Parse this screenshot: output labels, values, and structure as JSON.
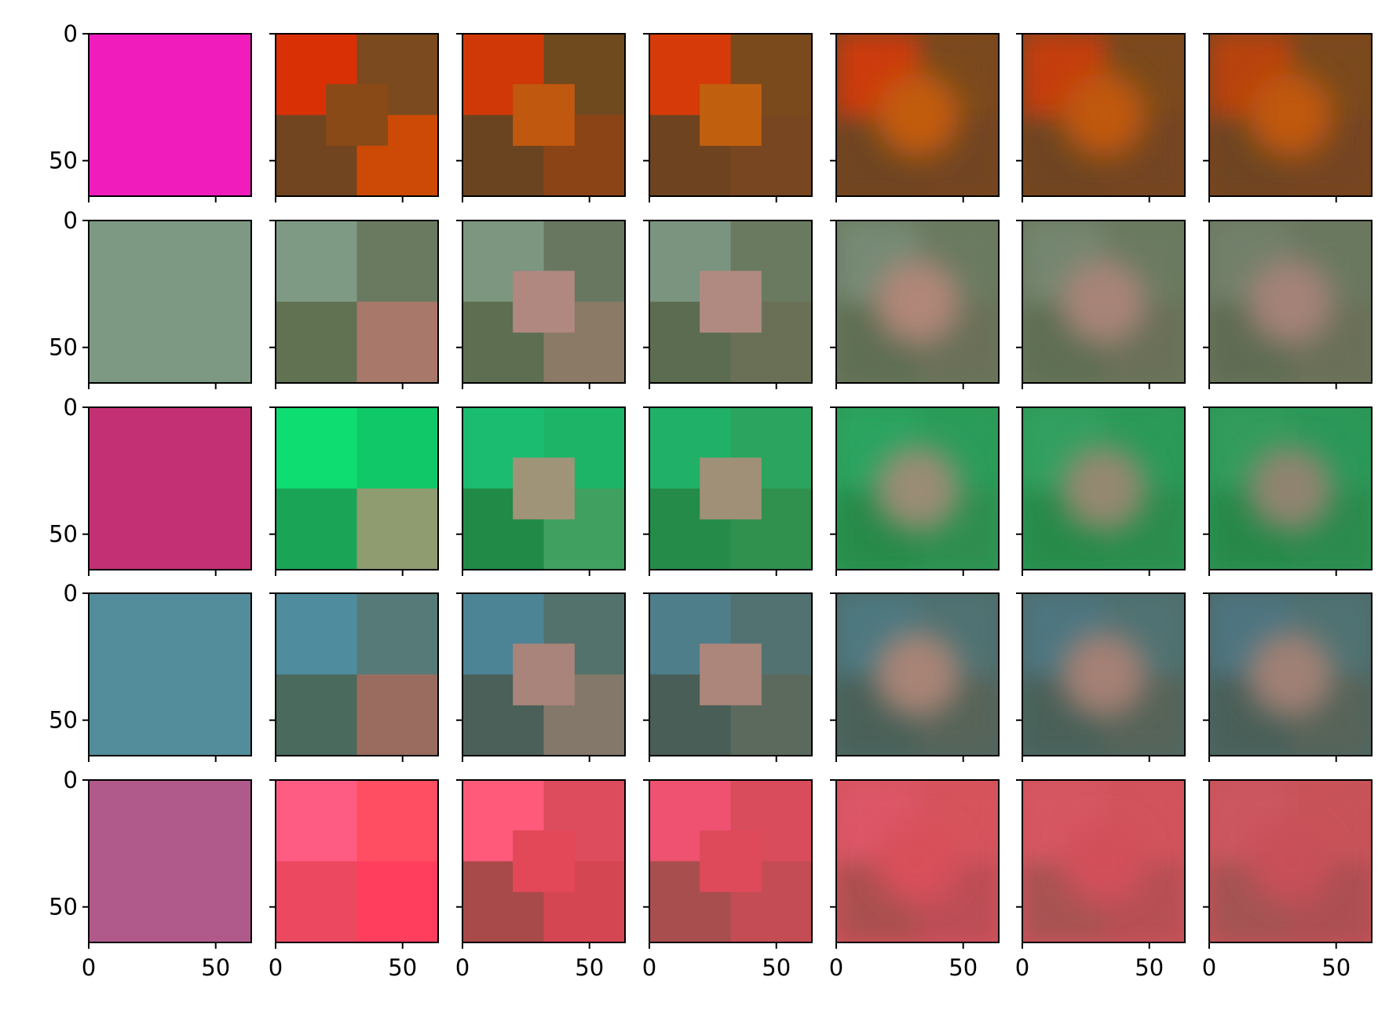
{
  "chart_data": {
    "type": "heatmap",
    "layout": "image grid, 5 rows x 7 columns",
    "x_ticks": [
      0,
      50
    ],
    "y_ticks": [
      0,
      50
    ],
    "xlim": [
      0,
      64
    ],
    "ylim": [
      64,
      0
    ],
    "grid": false,
    "legend": "none",
    "rows": [
      {
        "panels": [
          {
            "base": "#f01cbc",
            "tl": "#f01cbc",
            "tr": "#f01cbc",
            "bl": "#f01cbc",
            "br": "#f01cbc",
            "center": "#f01cbc",
            "blur": 0
          },
          {
            "base": "#7e4418",
            "tl": "#da3006",
            "tr": "#7b4a1e",
            "bl": "#704520",
            "br": "#cc4a06",
            "center": "#8a4a18",
            "blur": 0
          },
          {
            "base": "#8a4a1a",
            "tl": "#d03808",
            "tr": "#6e4a1e",
            "bl": "#6a4420",
            "br": "#8a4416",
            "center": "#c05810",
            "blur": 0
          },
          {
            "base": "#7e461c",
            "tl": "#d63a08",
            "tr": "#7a4a1c",
            "bl": "#6e4420",
            "br": "#784620",
            "center": "#c0600e",
            "blur": 0
          },
          {
            "base": "#7a461c",
            "tl": "#cc3a0a",
            "tr": "#7a4a1c",
            "bl": "#6e4420",
            "br": "#724420",
            "center": "#c25c10",
            "blur": 1
          },
          {
            "base": "#7c461c",
            "tl": "#c43e10",
            "tr": "#7a4a1c",
            "bl": "#6e4420",
            "br": "#734420",
            "center": "#c0580e",
            "blur": 1
          },
          {
            "base": "#7c461c",
            "tl": "#b8420e",
            "tr": "#7a4a1c",
            "bl": "#6e4420",
            "br": "#744420",
            "center": "#c0580e",
            "blur": 1
          }
        ]
      },
      {
        "panels": [
          {
            "base": "#7d9883",
            "tl": "#7d9883",
            "tr": "#7d9883",
            "bl": "#7d9883",
            "br": "#7d9883",
            "center": "#7d9883",
            "blur": 0
          },
          {
            "base": "#6a7a5e",
            "tl": "#7e9a84",
            "tr": "#6a7a60",
            "bl": "#607252",
            "br": "#a8786a",
            "center": "#6a7a5e",
            "blur": 0
          },
          {
            "base": "#6a7a5c",
            "tl": "#7c9680",
            "tr": "#687860",
            "bl": "#5e6e50",
            "br": "#8a7a66",
            "center": "#b08880",
            "blur": 0
          },
          {
            "base": "#68785a",
            "tl": "#7a9480",
            "tr": "#6a7a60",
            "bl": "#5c6c50",
            "br": "#6a7056",
            "center": "#b08a80",
            "blur": 0
          },
          {
            "base": "#6a785c",
            "tl": "#768a74",
            "tr": "#6a7a60",
            "bl": "#5e6e52",
            "br": "#6a7058",
            "center": "#b08678",
            "blur": 1
          },
          {
            "base": "#6a785c",
            "tl": "#748670",
            "tr": "#6a7a60",
            "bl": "#5e6e52",
            "br": "#6a7058",
            "center": "#a88478",
            "blur": 1
          },
          {
            "base": "#6c765c",
            "tl": "#72806a",
            "tr": "#6a7860",
            "bl": "#5e6c52",
            "br": "#6a7058",
            "center": "#a48278",
            "blur": 1
          }
        ]
      },
      {
        "panels": [
          {
            "base": "#c43074",
            "tl": "#c43074",
            "tr": "#c43074",
            "bl": "#c43074",
            "br": "#c43074",
            "center": "#c43074",
            "blur": 0
          },
          {
            "base": "#14b862",
            "tl": "#0ede72",
            "tr": "#10c868",
            "bl": "#1aa456",
            "br": "#8e9c70",
            "center": "#14b862",
            "blur": 0
          },
          {
            "base": "#20a85a",
            "tl": "#1cbc70",
            "tr": "#1eb468",
            "bl": "#208a46",
            "br": "#40a060",
            "center": "#a09478",
            "blur": 0
          },
          {
            "base": "#2aa058",
            "tl": "#20b068",
            "tr": "#2aa45e",
            "bl": "#248c48",
            "br": "#30904e",
            "center": "#a09078",
            "blur": 0
          },
          {
            "base": "#2c9a56",
            "tl": "#2ca460",
            "tr": "#2c9c5a",
            "bl": "#268a4a",
            "br": "#2e8e50",
            "center": "#9a8c74",
            "blur": 1
          },
          {
            "base": "#2c9856",
            "tl": "#30a060",
            "tr": "#2c9a58",
            "bl": "#268a4a",
            "br": "#2c8c4e",
            "center": "#948870",
            "blur": 1
          },
          {
            "base": "#2c9656",
            "tl": "#309c5c",
            "tr": "#2c9858",
            "bl": "#268848",
            "br": "#2c8a4e",
            "center": "#908470",
            "blur": 1
          }
        ]
      },
      {
        "panels": [
          {
            "base": "#538d9b",
            "tl": "#538d9b",
            "tr": "#538d9b",
            "bl": "#538d9b",
            "br": "#538d9b",
            "center": "#538d9b",
            "blur": 0
          },
          {
            "base": "#4e6a62",
            "tl": "#4e8c9e",
            "tr": "#567a78",
            "bl": "#4a6a5e",
            "br": "#9a6c60",
            "center": "#4e6a62",
            "blur": 0
          },
          {
            "base": "#507068",
            "tl": "#4c8496",
            "tr": "#54726c",
            "bl": "#4a6058",
            "br": "#84786a",
            "center": "#a8847a",
            "blur": 0
          },
          {
            "base": "#4e6c66",
            "tl": "#4e7e8a",
            "tr": "#527272",
            "bl": "#485e56",
            "br": "#5c6a5e",
            "center": "#ac867a",
            "blur": 0
          },
          {
            "base": "#4e6a66",
            "tl": "#4e7880",
            "tr": "#507272",
            "bl": "#486058",
            "br": "#566458",
            "center": "#a88476",
            "blur": 1
          },
          {
            "base": "#4e6a66",
            "tl": "#4e7680",
            "tr": "#507272",
            "bl": "#486058",
            "br": "#566458",
            "center": "#a48074",
            "blur": 1
          },
          {
            "base": "#4e6866",
            "tl": "#4e7480",
            "tr": "#507272",
            "bl": "#485e58",
            "br": "#566458",
            "center": "#a08074",
            "blur": 1
          }
        ]
      },
      {
        "panels": [
          {
            "base": "#b05a8c",
            "tl": "#b05a8c",
            "tr": "#b05a8c",
            "bl": "#b05a8c",
            "br": "#b05a8c",
            "center": "#b05a8c",
            "blur": 0
          },
          {
            "base": "#ff4a60",
            "tl": "#ff5c84",
            "tr": "#ff4e62",
            "bl": "#ec4860",
            "br": "#ff3e5e",
            "center": "#ff4a60",
            "blur": 0
          },
          {
            "base": "#dc4a5a",
            "tl": "#ff5a7a",
            "tr": "#dc4c5c",
            "bl": "#a84a4a",
            "br": "#d44652",
            "center": "#e24858",
            "blur": 0
          },
          {
            "base": "#d84e5a",
            "tl": "#ee5270",
            "tr": "#d84c5c",
            "bl": "#a84e4e",
            "br": "#c44c54",
            "center": "#de4a5a",
            "blur": 0
          },
          {
            "base": "#d6525c",
            "tl": "#dc5668",
            "tr": "#d6525c",
            "bl": "#aa5050",
            "br": "#bc4e56",
            "center": "#d8505a",
            "blur": 1
          },
          {
            "base": "#d0525a",
            "tl": "#d65662",
            "tr": "#d2525c",
            "bl": "#a85252",
            "br": "#b65054",
            "center": "#d2505a",
            "blur": 1
          },
          {
            "base": "#c85258",
            "tl": "#cc5660",
            "tr": "#c85258",
            "bl": "#a45252",
            "br": "#ac5052",
            "center": "#c85058",
            "blur": 1
          }
        ]
      }
    ]
  }
}
